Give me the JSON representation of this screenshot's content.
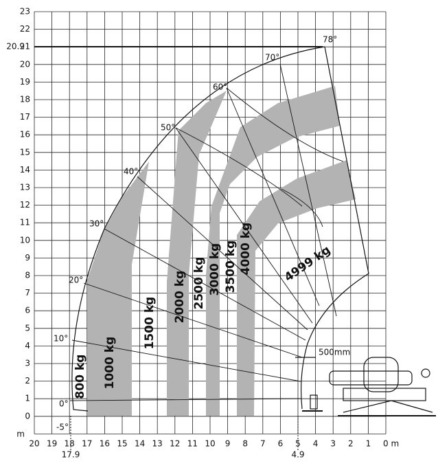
{
  "y_axis": {
    "ticks": [
      "23",
      "22",
      "21",
      "20",
      "19",
      "18",
      "17",
      "16",
      "15",
      "14",
      "13",
      "12",
      "11",
      "10",
      "9",
      "8",
      "7",
      "6",
      "5",
      "4",
      "3",
      "2",
      "1",
      "0"
    ],
    "unit": "m",
    "marker": "20.9"
  },
  "x_axis": {
    "ticks": [
      "20",
      "19",
      "18",
      "17",
      "16",
      "15",
      "14",
      "13",
      "12",
      "11",
      "10",
      "9",
      "8",
      "7",
      "6",
      "5",
      "4",
      "3",
      "2",
      "1",
      "0 m"
    ],
    "markers": [
      "17.9",
      "4.9"
    ]
  },
  "angles": [
    "78°",
    "70°",
    "60°",
    "50°",
    "40°",
    "30°",
    "20°",
    "10°",
    "0°",
    "-5°"
  ],
  "loads": [
    "800 kg",
    "1000 kg",
    "1500 kg",
    "2000 kg",
    "2500 kg",
    "3000 kg",
    "3500 kg",
    "4000 kg",
    "4999 kg"
  ],
  "dimension": "500mm"
}
